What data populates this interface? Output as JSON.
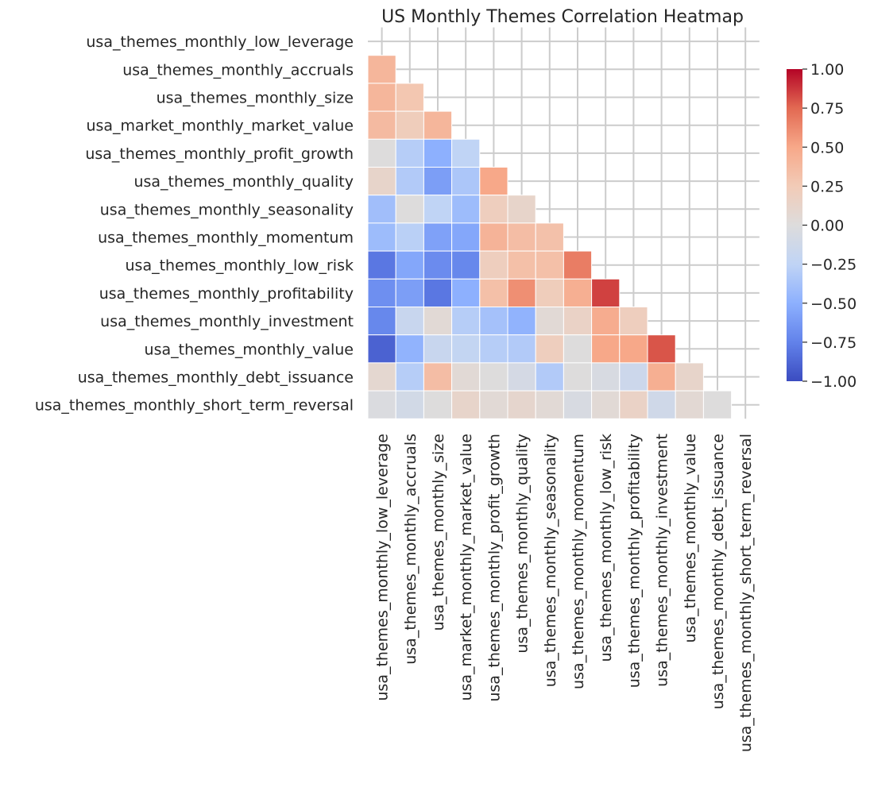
{
  "chart_data": {
    "type": "heatmap",
    "title": "US Monthly Themes Correlation Heatmap",
    "labels": [
      "usa_themes_monthly_low_leverage",
      "usa_themes_monthly_accruals",
      "usa_themes_monthly_size",
      "usa_market_monthly_market_value",
      "usa_themes_monthly_profit_growth",
      "usa_themes_monthly_quality",
      "usa_themes_monthly_seasonality",
      "usa_themes_monthly_momentum",
      "usa_themes_monthly_low_risk",
      "usa_themes_monthly_profitability",
      "usa_themes_monthly_investment",
      "usa_themes_monthly_value",
      "usa_themes_monthly_debt_issuance",
      "usa_themes_monthly_short_term_reversal"
    ],
    "mask": "upper triangle including diagonal",
    "lower_triangle_values": [
      [],
      [
        0.4
      ],
      [
        0.4,
        0.28
      ],
      [
        0.37,
        0.22,
        0.4
      ],
      [
        0.0,
        -0.3,
        -0.5,
        -0.25
      ],
      [
        0.12,
        -0.32,
        -0.6,
        -0.35,
        0.5
      ],
      [
        -0.4,
        0.0,
        -0.25,
        -0.42,
        0.2,
        0.12
      ],
      [
        -0.42,
        -0.28,
        -0.58,
        -0.55,
        0.42,
        0.35,
        0.32
      ],
      [
        -0.8,
        -0.55,
        -0.7,
        -0.72,
        0.2,
        0.33,
        0.33,
        0.67
      ],
      [
        -0.68,
        -0.6,
        -0.8,
        -0.5,
        0.33,
        0.6,
        0.22,
        0.45,
        0.85
      ],
      [
        -0.72,
        -0.18,
        0.05,
        -0.3,
        -0.38,
        -0.48,
        0.05,
        0.15,
        0.47,
        0.2
      ],
      [
        -0.9,
        -0.48,
        -0.18,
        -0.22,
        -0.3,
        -0.32,
        0.2,
        0.0,
        0.5,
        0.5,
        0.8
      ],
      [
        0.08,
        -0.3,
        0.35,
        0.05,
        0.0,
        -0.08,
        -0.32,
        0.0,
        -0.05,
        -0.15,
        0.45,
        0.12
      ],
      [
        -0.03,
        -0.1,
        0.0,
        0.12,
        0.05,
        0.1,
        0.05,
        -0.05,
        0.05,
        0.15,
        -0.12,
        0.06,
        0.0
      ]
    ],
    "colormap": "coolwarm",
    "vmin": -1,
    "vmax": 1,
    "colorbar_ticks": [
      "1.00",
      "0.75",
      "0.50",
      "0.25",
      "0.00",
      "−0.25",
      "−0.50",
      "−0.75",
      "−1.00"
    ],
    "colorbar_tick_values": [
      1,
      0.75,
      0.5,
      0.25,
      0,
      -0.25,
      -0.5,
      -0.75,
      -1
    ],
    "grid": true
  }
}
